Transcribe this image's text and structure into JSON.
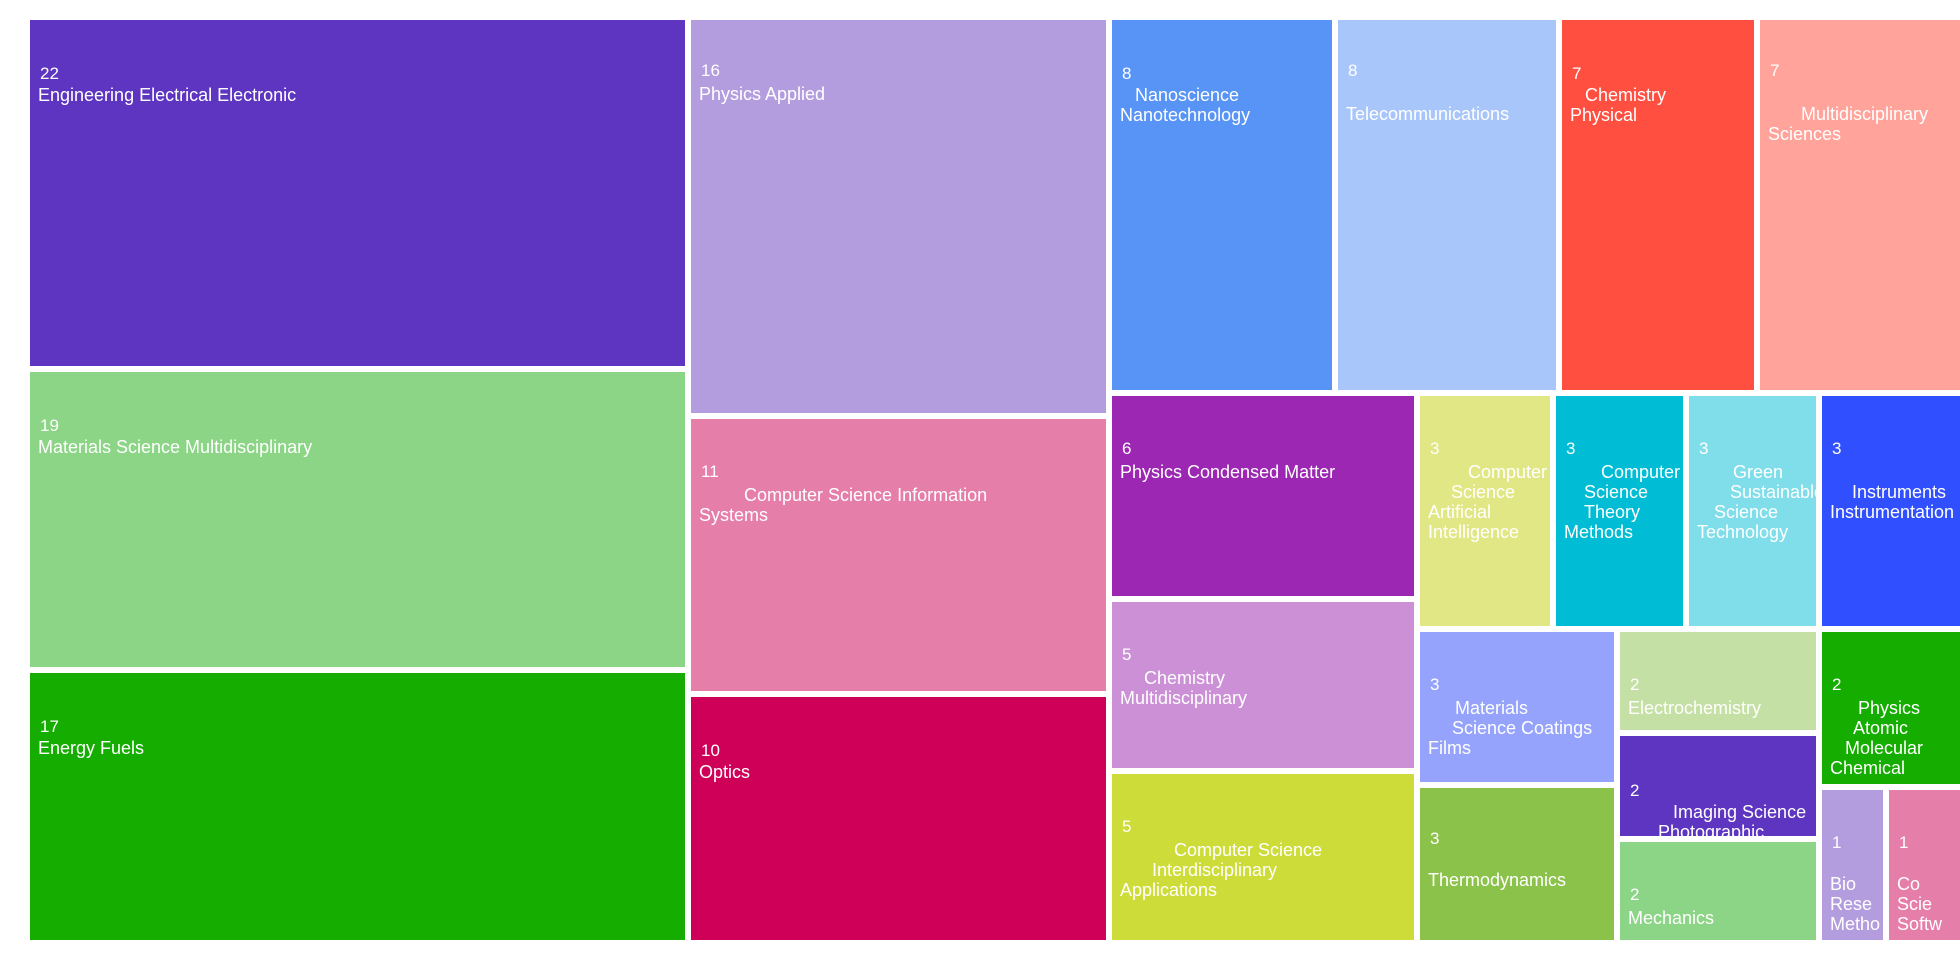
{
  "colors": {
    "background": "#ffffff",
    "text": "#ffffff"
  },
  "chart_data": {
    "type": "treemap",
    "title": "",
    "items": [
      {
        "label": "Engineering Electrical Electronic",
        "lines": [
          "Engineering Electrical Electronic"
        ],
        "value": 22,
        "color": "#5e35c0"
      },
      {
        "label": "Materials Science Multidisciplinary",
        "lines": [
          "Materials Science Multidisciplinary"
        ],
        "value": 19,
        "color": "#8cd586"
      },
      {
        "label": "Energy Fuels",
        "lines": [
          "Energy Fuels"
        ],
        "value": 17,
        "color": "#14ad00"
      },
      {
        "label": "Physics Applied",
        "lines": [
          "Physics Applied"
        ],
        "value": 16,
        "color": "#b39ddf"
      },
      {
        "label": "Computer Science Information Systems",
        "lines": [
          "Computer Science Information",
          "Systems"
        ],
        "value": 11,
        "color": "#e57ea9"
      },
      {
        "label": "Optics",
        "lines": [
          "Optics"
        ],
        "value": 10,
        "color": "#cf0057"
      },
      {
        "label": "Nanoscience Nanotechnology",
        "lines": [
          "Nanoscience",
          "Nanotechnology"
        ],
        "value": 8,
        "color": "#5894f6"
      },
      {
        "label": "Telecommunications",
        "lines": [
          "Telecommunications"
        ],
        "value": 8,
        "color": "#a9c6fa"
      },
      {
        "label": "Chemistry Physical",
        "lines": [
          "Chemistry",
          "Physical"
        ],
        "value": 7,
        "color": "#ff4f40"
      },
      {
        "label": "Multidisciplinary Sciences",
        "lines": [
          "Multidisciplinary",
          "Sciences"
        ],
        "value": 7,
        "color": "#ffa39b"
      },
      {
        "label": "Physics Condensed Matter",
        "lines": [
          "Physics Condensed Matter"
        ],
        "value": 6,
        "color": "#9c27b2"
      },
      {
        "label": "Chemistry Multidisciplinary",
        "lines": [
          "Chemistry",
          "Multidisciplinary"
        ],
        "value": 5,
        "color": "#cb90d6"
      },
      {
        "label": "Computer Science Interdisciplinary Applications",
        "lines": [
          "Computer Science",
          "Interdisciplinary",
          "Applications"
        ],
        "value": 5,
        "color": "#cddc39"
      },
      {
        "label": "Computer Science Artificial Intelligence",
        "lines": [
          "Computer",
          "Science",
          "Artificial",
          "Intelligence"
        ],
        "value": 3,
        "color": "#e1e785"
      },
      {
        "label": "Computer Science Theory Methods",
        "lines": [
          "Computer",
          "Science",
          "Theory",
          "Methods"
        ],
        "value": 3,
        "color": "#00bcd4"
      },
      {
        "label": "Green Sustainable Science Technology",
        "lines": [
          "Green",
          "Sustainable",
          "Science",
          "Technology"
        ],
        "value": 3,
        "color": "#80deea"
      },
      {
        "label": "Instruments Instrumentation",
        "lines": [
          "Instruments",
          "Instrumentation"
        ],
        "value": 3,
        "color": "#304ffe"
      },
      {
        "label": "Materials Science Coatings Films",
        "lines": [
          "Materials",
          "Science Coatings",
          "Films"
        ],
        "value": 3,
        "color": "#95a3fc"
      },
      {
        "label": "Thermodynamics",
        "lines": [
          "Thermodynamics"
        ],
        "value": 3,
        "color": "#8bc24a"
      },
      {
        "label": "Electrochemistry",
        "lines": [
          "Electrochemistry"
        ],
        "value": 2,
        "color": "#c5e0a4"
      },
      {
        "label": "Imaging Science Photographic",
        "lines": [
          "Imaging Science",
          "Photographic"
        ],
        "value": 2,
        "color": "#5e35c0"
      },
      {
        "label": "Mechanics",
        "lines": [
          "Mechanics"
        ],
        "value": 2,
        "color": "#8cd586"
      },
      {
        "label": "Physics Atomic Molecular Chemical",
        "lines": [
          "Physics",
          "Atomic",
          "Molecular",
          "Chemical"
        ],
        "value": 2,
        "color": "#14ad00"
      },
      {
        "label": "Biochemical Research Methods",
        "lines": [
          "Bio",
          "Rese",
          "Metho"
        ],
        "value": 1,
        "color": "#b39ddf"
      },
      {
        "label": "Computer Science Software Engineering",
        "lines": [
          "Co",
          "Scie",
          "Softw"
        ],
        "value": 1,
        "color": "#e57ea9"
      }
    ]
  }
}
